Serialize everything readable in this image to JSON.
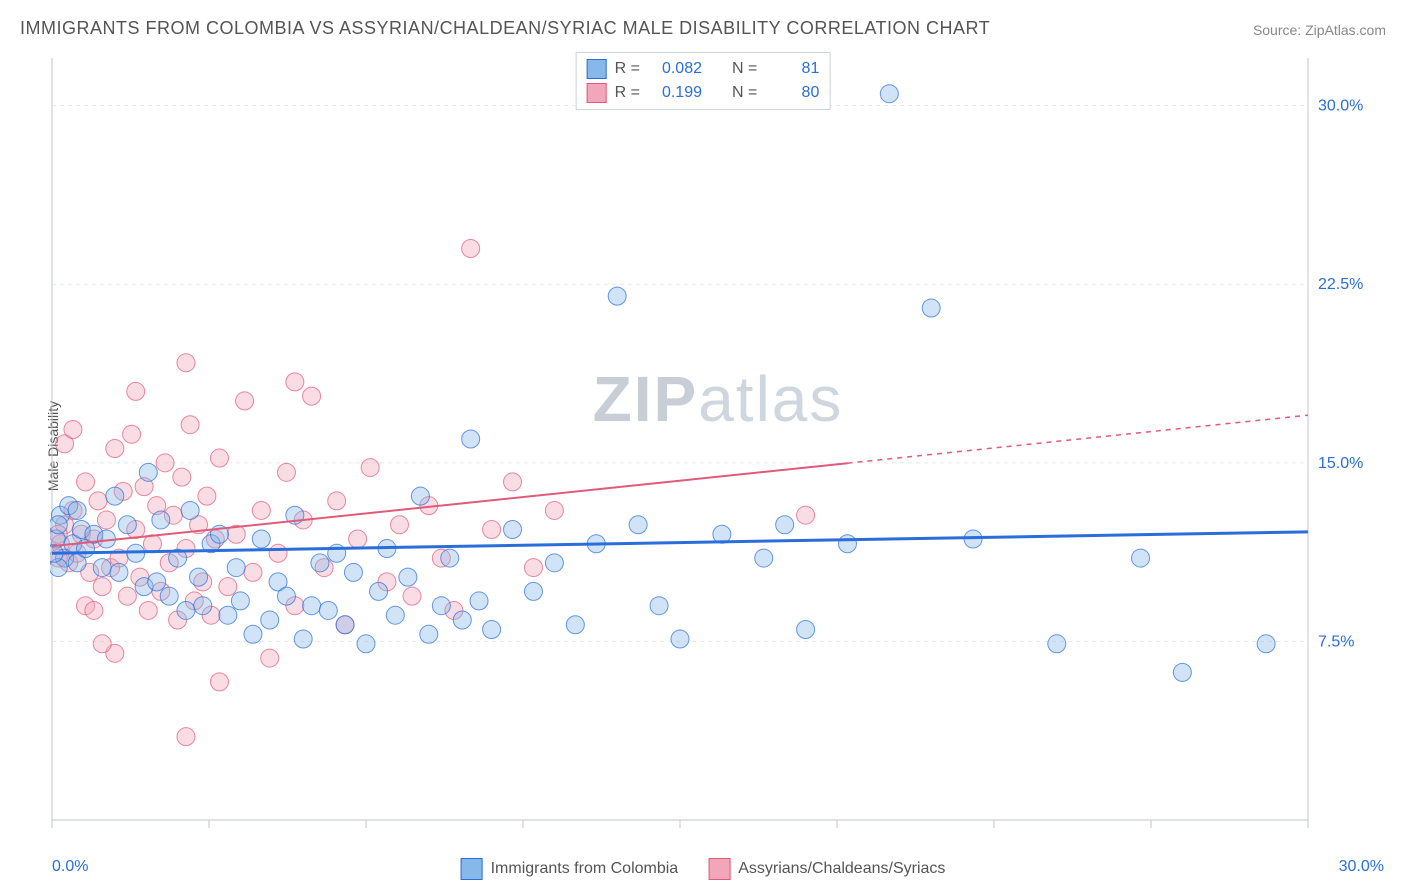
{
  "title": "IMMIGRANTS FROM COLOMBIA VS ASSYRIAN/CHALDEAN/SYRIAC MALE DISABILITY CORRELATION CHART",
  "source_label": "Source: ZipAtlas.com",
  "y_axis_label": "Male Disability",
  "watermark_bold": "ZIP",
  "watermark_light": "atlas",
  "chart": {
    "type": "scatter",
    "x_min": 0.0,
    "x_max": 30.0,
    "y_min": 0.0,
    "y_max": 32.0,
    "x_tick_min_label": "0.0%",
    "x_tick_max_label": "30.0%",
    "y_ticks": [
      7.5,
      15.0,
      22.5,
      30.0
    ],
    "y_tick_labels": [
      "7.5%",
      "15.0%",
      "22.5%",
      "30.0%"
    ],
    "y_tick_color": "#2a6edb",
    "grid_color": "#e4e7ea",
    "axis_color": "#c0c7ce",
    "background_color": "#ffffff",
    "label_fontsize": 14,
    "tick_fontsize": 16,
    "point_radius": 9,
    "point_opacity": 0.38,
    "series": [
      {
        "id": "colombia",
        "label": "Immigrants from Colombia",
        "fill": "#86b8ea",
        "stroke": "#2a6edb",
        "R": "0.082",
        "N": "81",
        "trend": {
          "y_at_xmin": 11.2,
          "y_at_xmax": 12.1,
          "solid_until_x": 30.0,
          "color": "#2a6edb",
          "width": 3
        },
        "points": [
          [
            0.2,
            12.8
          ],
          [
            0.3,
            11.0
          ],
          [
            0.4,
            13.2
          ],
          [
            0.5,
            11.6
          ],
          [
            0.6,
            10.8
          ],
          [
            0.6,
            13.0
          ],
          [
            0.7,
            12.2
          ],
          [
            0.8,
            11.4
          ],
          [
            1.0,
            12.0
          ],
          [
            1.2,
            10.6
          ],
          [
            1.3,
            11.8
          ],
          [
            1.5,
            13.6
          ],
          [
            1.6,
            10.4
          ],
          [
            1.8,
            12.4
          ],
          [
            2.0,
            11.2
          ],
          [
            2.2,
            9.8
          ],
          [
            2.3,
            14.6
          ],
          [
            2.5,
            10.0
          ],
          [
            2.6,
            12.6
          ],
          [
            2.8,
            9.4
          ],
          [
            3.0,
            11.0
          ],
          [
            3.2,
            8.8
          ],
          [
            3.3,
            13.0
          ],
          [
            3.5,
            10.2
          ],
          [
            3.6,
            9.0
          ],
          [
            3.8,
            11.6
          ],
          [
            4.0,
            12.0
          ],
          [
            4.2,
            8.6
          ],
          [
            4.4,
            10.6
          ],
          [
            4.5,
            9.2
          ],
          [
            4.8,
            7.8
          ],
          [
            5.0,
            11.8
          ],
          [
            5.2,
            8.4
          ],
          [
            5.4,
            10.0
          ],
          [
            5.6,
            9.4
          ],
          [
            5.8,
            12.8
          ],
          [
            6.0,
            7.6
          ],
          [
            6.2,
            9.0
          ],
          [
            6.4,
            10.8
          ],
          [
            6.6,
            8.8
          ],
          [
            6.8,
            11.2
          ],
          [
            7.0,
            8.2
          ],
          [
            7.2,
            10.4
          ],
          [
            7.5,
            7.4
          ],
          [
            7.8,
            9.6
          ],
          [
            8.0,
            11.4
          ],
          [
            8.2,
            8.6
          ],
          [
            8.5,
            10.2
          ],
          [
            8.8,
            13.6
          ],
          [
            9.0,
            7.8
          ],
          [
            9.3,
            9.0
          ],
          [
            9.5,
            11.0
          ],
          [
            9.8,
            8.4
          ],
          [
            10.0,
            16.0
          ],
          [
            10.2,
            9.2
          ],
          [
            10.5,
            8.0
          ],
          [
            11.0,
            12.2
          ],
          [
            11.5,
            9.6
          ],
          [
            12.0,
            10.8
          ],
          [
            12.5,
            8.2
          ],
          [
            13.0,
            11.6
          ],
          [
            13.5,
            22.0
          ],
          [
            14.0,
            12.4
          ],
          [
            14.5,
            9.0
          ],
          [
            15.0,
            7.6
          ],
          [
            16.0,
            12.0
          ],
          [
            17.0,
            11.0
          ],
          [
            17.5,
            12.4
          ],
          [
            18.0,
            8.0
          ],
          [
            19.0,
            11.6
          ],
          [
            20.0,
            30.5
          ],
          [
            21.0,
            21.5
          ],
          [
            22.0,
            11.8
          ],
          [
            24.0,
            7.4
          ],
          [
            26.0,
            11.0
          ],
          [
            27.0,
            6.2
          ],
          [
            29.0,
            7.4
          ],
          [
            0.1,
            11.8
          ],
          [
            0.15,
            12.4
          ],
          [
            0.15,
            10.6
          ],
          [
            0.05,
            11.2
          ]
        ]
      },
      {
        "id": "assyrian",
        "label": "Assyrians/Chaldeans/Syriacs",
        "fill": "#f2a6b9",
        "stroke": "#e05a7a",
        "R": "0.199",
        "N": "80",
        "trend": {
          "y_at_xmin": 11.5,
          "y_at_xmax": 17.0,
          "solid_until_x": 19.0,
          "color": "#e05a7a",
          "width": 2
        },
        "points": [
          [
            0.2,
            11.6
          ],
          [
            0.3,
            12.4
          ],
          [
            0.4,
            10.8
          ],
          [
            0.5,
            13.0
          ],
          [
            0.6,
            11.2
          ],
          [
            0.7,
            12.0
          ],
          [
            0.8,
            14.2
          ],
          [
            0.9,
            10.4
          ],
          [
            1.0,
            11.8
          ],
          [
            1.1,
            13.4
          ],
          [
            1.2,
            9.8
          ],
          [
            1.3,
            12.6
          ],
          [
            1.4,
            10.6
          ],
          [
            1.5,
            15.6
          ],
          [
            1.6,
            11.0
          ],
          [
            1.7,
            13.8
          ],
          [
            1.8,
            9.4
          ],
          [
            1.9,
            16.2
          ],
          [
            2.0,
            12.2
          ],
          [
            2.1,
            10.2
          ],
          [
            2.2,
            14.0
          ],
          [
            2.3,
            8.8
          ],
          [
            2.4,
            11.6
          ],
          [
            2.5,
            13.2
          ],
          [
            2.6,
            9.6
          ],
          [
            2.7,
            15.0
          ],
          [
            2.8,
            10.8
          ],
          [
            2.9,
            12.8
          ],
          [
            3.0,
            8.4
          ],
          [
            3.1,
            14.4
          ],
          [
            3.2,
            11.4
          ],
          [
            3.3,
            16.6
          ],
          [
            3.4,
            9.2
          ],
          [
            3.5,
            12.4
          ],
          [
            3.6,
            10.0
          ],
          [
            3.7,
            13.6
          ],
          [
            3.8,
            8.6
          ],
          [
            3.9,
            11.8
          ],
          [
            4.0,
            15.2
          ],
          [
            4.2,
            9.8
          ],
          [
            4.4,
            12.0
          ],
          [
            4.6,
            17.6
          ],
          [
            4.8,
            10.4
          ],
          [
            5.0,
            13.0
          ],
          [
            5.2,
            6.8
          ],
          [
            5.4,
            11.2
          ],
          [
            5.6,
            14.6
          ],
          [
            5.8,
            9.0
          ],
          [
            6.0,
            12.6
          ],
          [
            6.2,
            17.8
          ],
          [
            6.5,
            10.6
          ],
          [
            6.8,
            13.4
          ],
          [
            7.0,
            8.2
          ],
          [
            7.3,
            11.8
          ],
          [
            7.6,
            14.8
          ],
          [
            8.0,
            10.0
          ],
          [
            8.3,
            12.4
          ],
          [
            8.6,
            9.4
          ],
          [
            9.0,
            13.2
          ],
          [
            9.3,
            11.0
          ],
          [
            9.6,
            8.8
          ],
          [
            10.0,
            24.0
          ],
          [
            10.5,
            12.2
          ],
          [
            11.0,
            14.2
          ],
          [
            11.5,
            10.6
          ],
          [
            12.0,
            13.0
          ],
          [
            3.2,
            19.2
          ],
          [
            2.0,
            18.0
          ],
          [
            3.2,
            3.5
          ],
          [
            4.0,
            5.8
          ],
          [
            1.5,
            7.0
          ],
          [
            0.3,
            15.8
          ],
          [
            0.5,
            16.4
          ],
          [
            0.8,
            9.0
          ],
          [
            1.0,
            8.8
          ],
          [
            1.2,
            7.4
          ],
          [
            5.8,
            18.4
          ],
          [
            18.0,
            12.8
          ],
          [
            0.15,
            11.0
          ],
          [
            0.15,
            12.0
          ]
        ]
      }
    ],
    "correlation_box": {
      "R_prefix": "R =",
      "N_prefix": "N ="
    },
    "bottom_legend": [
      {
        "series": "colombia"
      },
      {
        "series": "assyrian"
      }
    ]
  }
}
